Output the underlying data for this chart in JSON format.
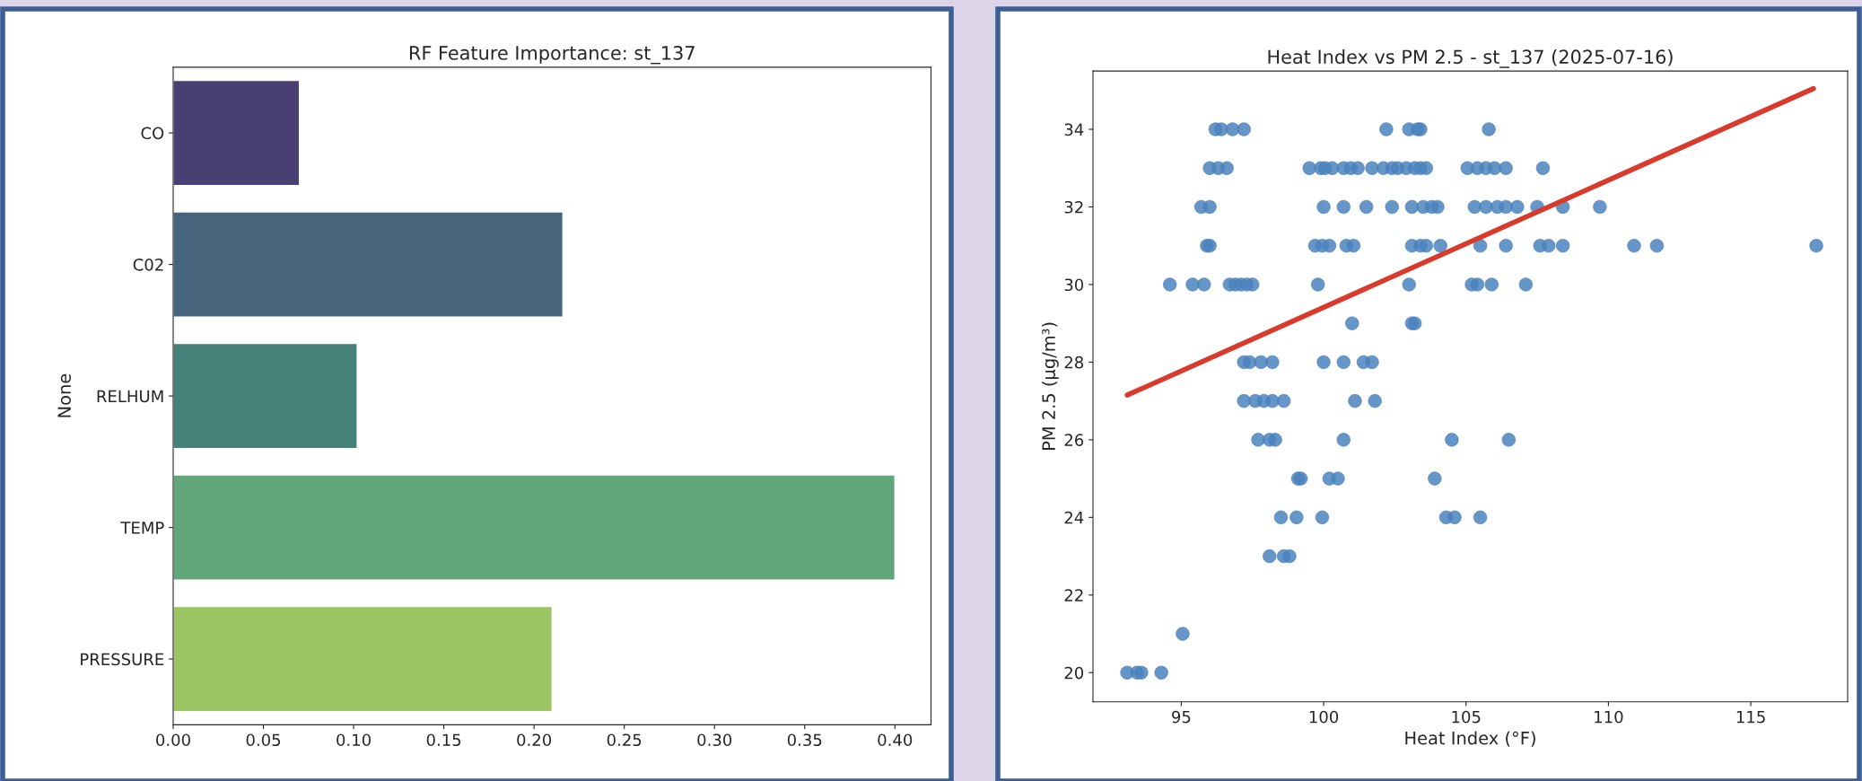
{
  "chart_data": [
    {
      "type": "bar",
      "orientation": "horizontal",
      "title": "RF Feature Importance: st_137",
      "ylabel": "None",
      "categories": [
        "CO",
        "C02",
        "RELHUM",
        "TEMP",
        "PRESSURE"
      ],
      "values": [
        0.07,
        0.216,
        0.102,
        0.4,
        0.21
      ],
      "colors": [
        "#4a3f73",
        "#46657d",
        "#47827a",
        "#61a67b",
        "#9bc464"
      ],
      "xlim": [
        0,
        0.42
      ],
      "xticks": [
        {
          "value": 0,
          "label": "0.00"
        },
        0.05,
        {
          "value": 0.1,
          "label": "0.10"
        },
        0.15,
        {
          "value": 0.2,
          "label": "0.20"
        },
        0.25,
        {
          "value": 0.3,
          "label": "0.30"
        },
        0.35,
        {
          "value": 0.4,
          "label": "0.40"
        }
      ]
    },
    {
      "type": "scatter",
      "title": "Heat Index vs PM 2.5 - st_137 (2025-07-16)",
      "xlabel": "Heat Index (°F)",
      "ylabel": "PM 2.5 (μg/m³)",
      "xlim": [
        91.9,
        118.4
      ],
      "ylim": [
        19.25,
        35.5
      ],
      "xticks": [
        95,
        100,
        105,
        110,
        115
      ],
      "yticks": [
        20,
        22,
        24,
        26,
        28,
        30,
        32,
        34
      ],
      "series": [
        {
          "type": "scatter",
          "color": "#4b82bd",
          "marker": "circle",
          "x": [
            96.2,
            96.4,
            96.8,
            97.2,
            102.2,
            103.0,
            103.3,
            103.4,
            105.8,
            96.0,
            96.3,
            96.6,
            99.5,
            99.9,
            100.05,
            100.3,
            100.7,
            100.95,
            101.2,
            101.7,
            102.1,
            102.4,
            102.6,
            102.9,
            103.2,
            103.4,
            103.6,
            105.05,
            105.4,
            105.7,
            106.0,
            106.4,
            107.7,
            95.7,
            96.0,
            100.0,
            100.7,
            101.5,
            102.4,
            103.1,
            103.5,
            103.8,
            104.0,
            105.3,
            105.7,
            106.1,
            106.4,
            106.8,
            107.5,
            108.4,
            109.7,
            95.9,
            96.0,
            99.7,
            99.95,
            100.2,
            100.8,
            101.05,
            103.1,
            103.4,
            103.6,
            104.1,
            105.5,
            106.4,
            107.6,
            107.9,
            108.4,
            110.9,
            111.7,
            117.3,
            94.6,
            95.4,
            95.8,
            96.7,
            96.9,
            97.1,
            97.3,
            97.5,
            99.8,
            103.0,
            105.2,
            105.4,
            105.9,
            107.1,
            101.0,
            103.1,
            103.2,
            97.2,
            97.4,
            97.8,
            98.2,
            100.0,
            100.7,
            101.4,
            101.7,
            97.2,
            97.6,
            97.9,
            98.2,
            98.6,
            101.1,
            101.8,
            97.7,
            98.1,
            98.3,
            100.7,
            104.5,
            106.5,
            99.1,
            99.2,
            100.2,
            100.5,
            103.9,
            98.5,
            99.05,
            99.95,
            104.3,
            104.6,
            105.5,
            98.1,
            98.6,
            98.8,
            95.05,
            93.1,
            93.45,
            93.6,
            94.3
          ],
          "values": [
            34,
            34,
            34,
            34,
            34,
            34,
            34,
            34,
            34,
            33,
            33,
            33,
            33,
            33,
            33,
            33,
            33,
            33,
            33,
            33,
            33,
            33,
            33,
            33,
            33,
            33,
            33,
            33,
            33,
            33,
            33,
            33,
            33,
            32,
            32,
            32,
            32,
            32,
            32,
            32,
            32,
            32,
            32,
            32,
            32,
            32,
            32,
            32,
            32,
            32,
            32,
            31,
            31,
            31,
            31,
            31,
            31,
            31,
            31,
            31,
            31,
            31,
            31,
            31,
            31,
            31,
            31,
            31,
            31,
            31,
            30,
            30,
            30,
            30,
            30,
            30,
            30,
            30,
            30,
            30,
            30,
            30,
            30,
            30,
            29,
            29,
            29,
            28,
            28,
            28,
            28,
            28,
            28,
            28,
            28,
            27,
            27,
            27,
            27,
            27,
            27,
            27,
            26,
            26,
            26,
            26,
            26,
            26,
            25,
            25,
            25,
            25,
            25,
            24,
            24,
            24,
            24,
            24,
            24,
            23,
            23,
            23,
            21,
            20,
            20,
            20,
            20
          ]
        },
        {
          "type": "line",
          "color": "#d93a2b",
          "marker": "none",
          "x": [
            93.1,
            117.2
          ],
          "values": [
            27.15,
            35.05
          ]
        }
      ]
    }
  ]
}
